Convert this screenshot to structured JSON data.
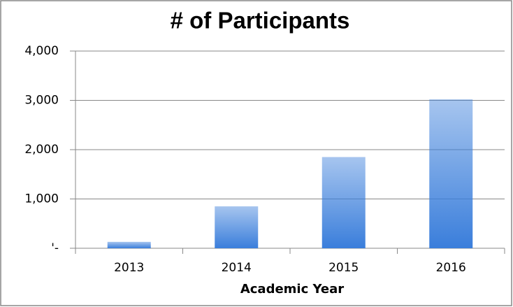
{
  "chart_data": {
    "type": "bar",
    "title": "# of Participants",
    "x_label": "Academic Year",
    "categories": [
      "2013",
      "2014",
      "2015",
      "2016"
    ],
    "values": [
      130,
      850,
      1850,
      3020
    ],
    "color": "#3a7edb",
    "ylim": [
      0,
      4000
    ],
    "yticks": [
      {
        "value": 0,
        "label": "'-"
      },
      {
        "value": 1000,
        "label": "1,000"
      },
      {
        "value": 2000,
        "label": "2,000"
      },
      {
        "value": 3000,
        "label": "3,000"
      },
      {
        "value": 4000,
        "label": "4,000"
      }
    ],
    "grid": true
  }
}
